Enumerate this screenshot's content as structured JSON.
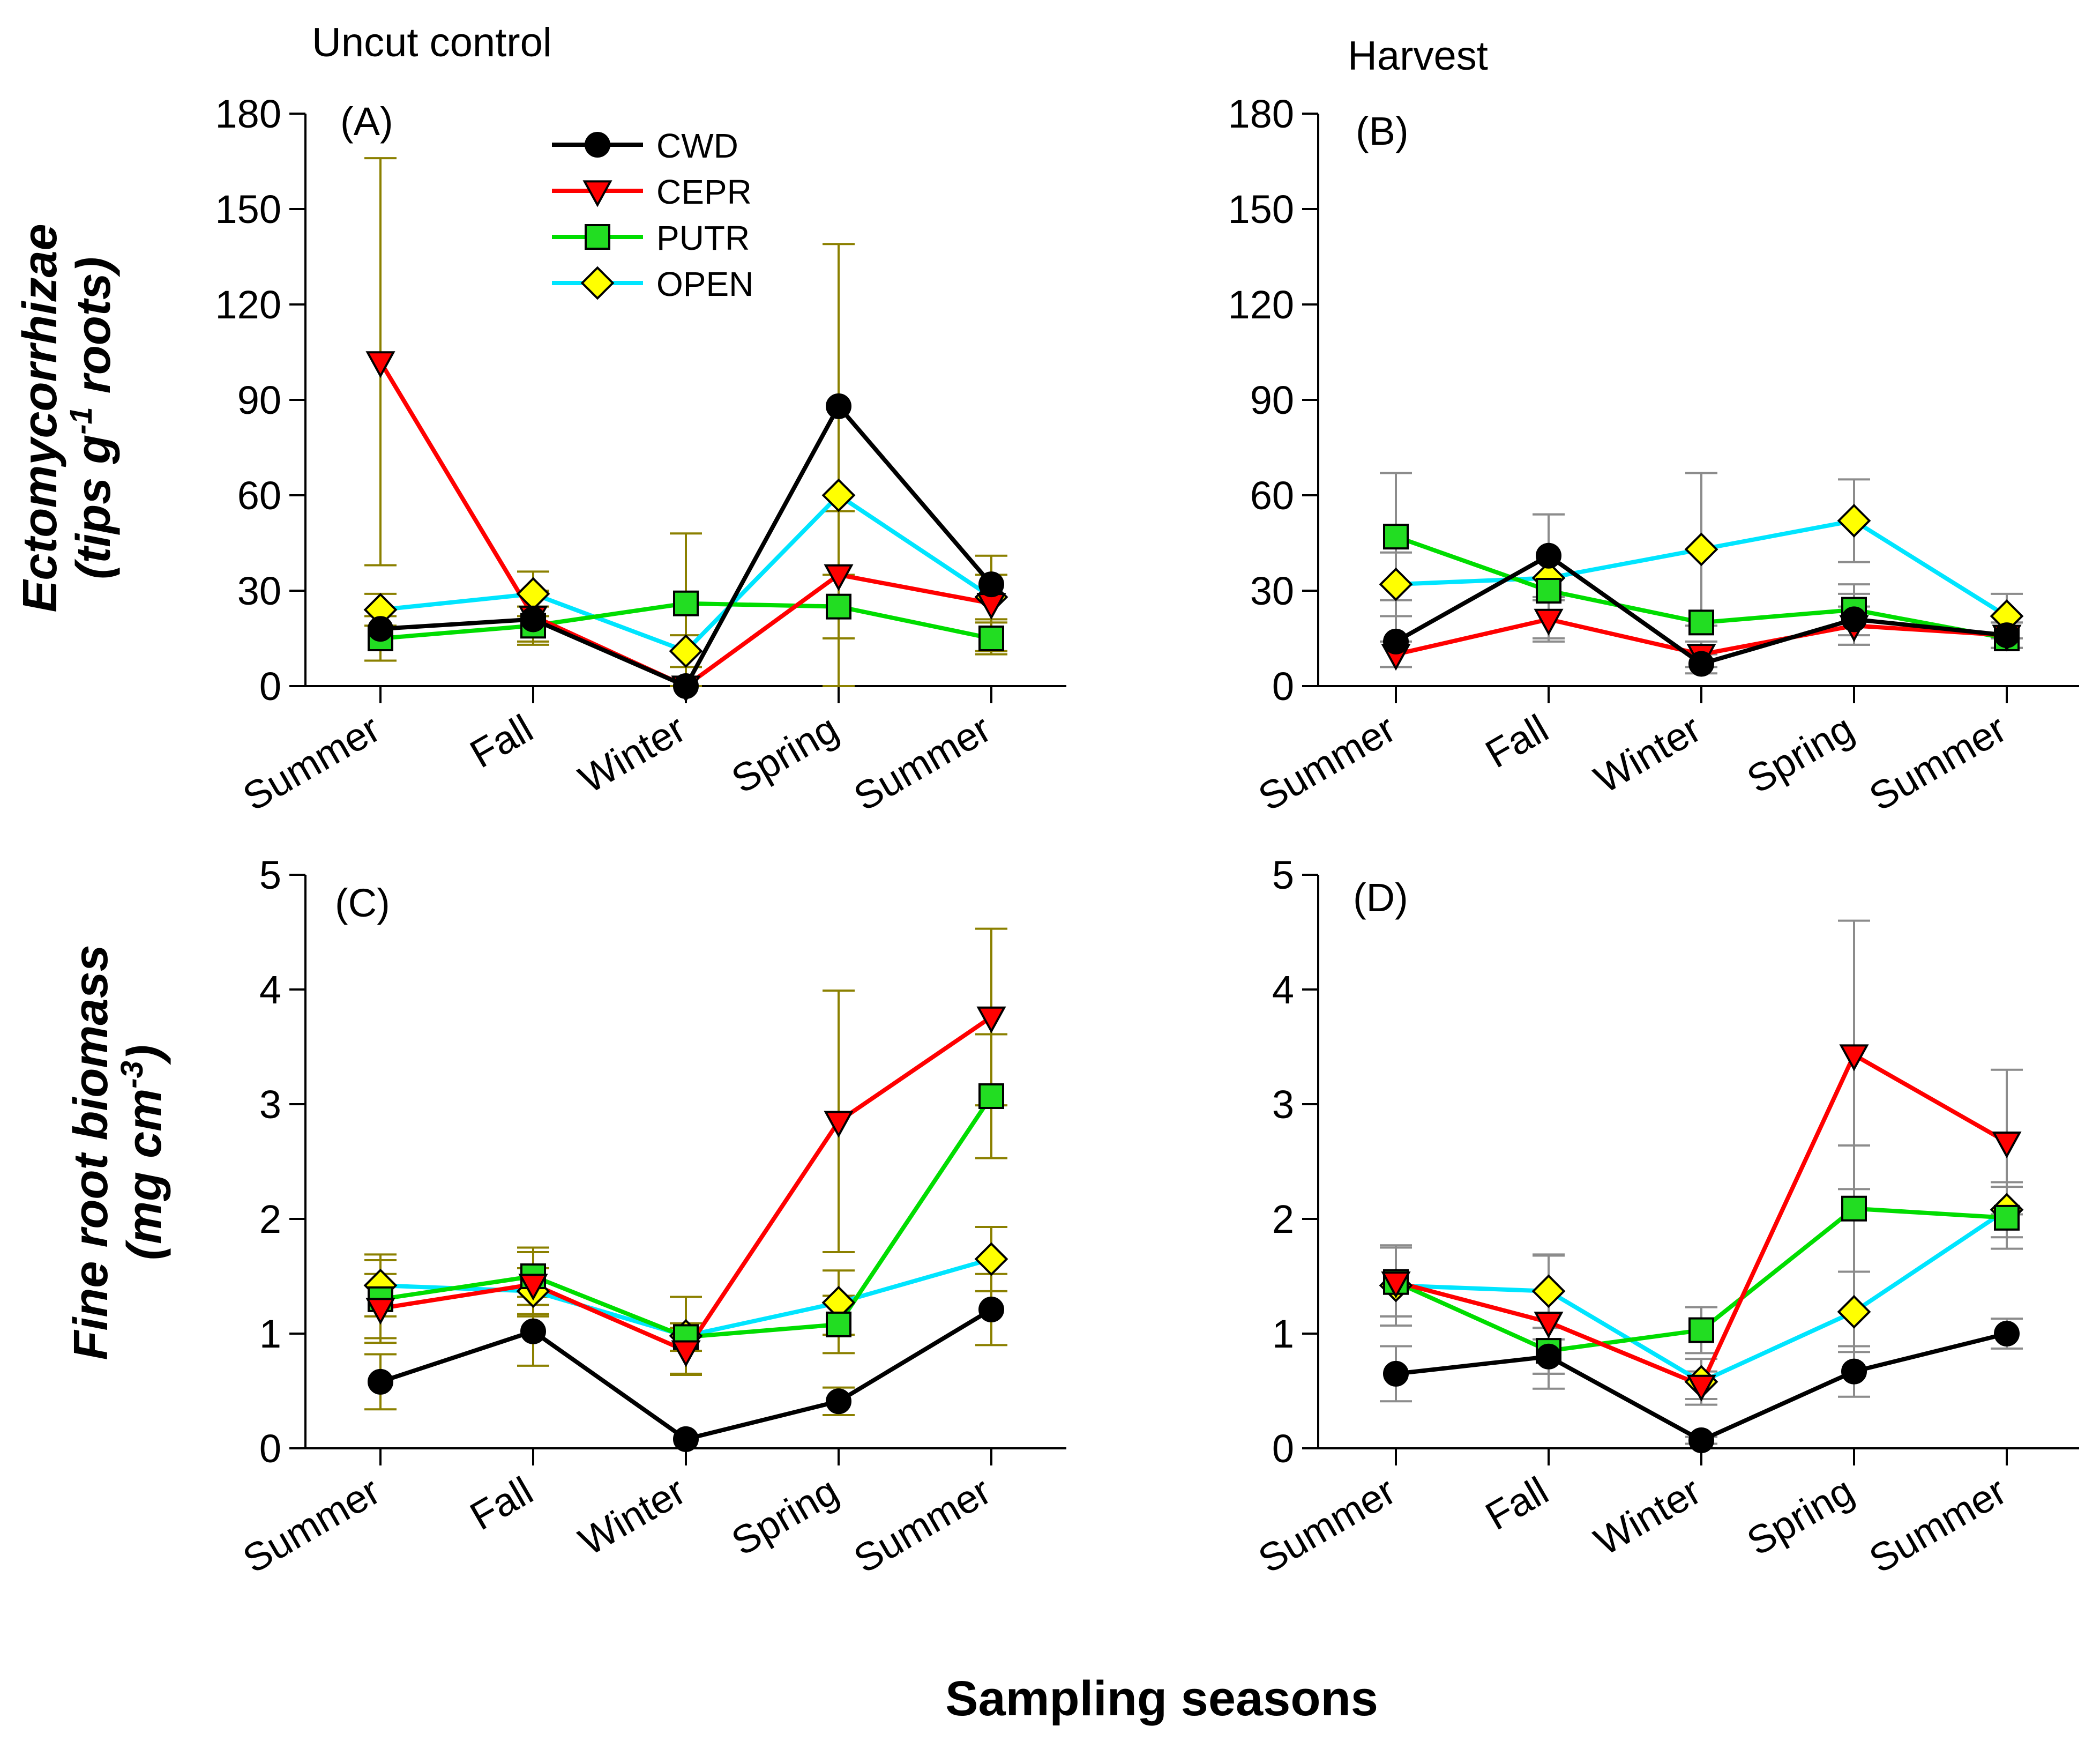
{
  "figure": {
    "xlabel": "Sampling seasons",
    "ylabel_top_line1": "Ectomycorrhizae",
    "ylabel_top_line2": "(tips g",
    "ylabel_top_sup": "-1",
    "ylabel_top_end": " roots)",
    "ylabel_bottom_line1": "Fine root biomass",
    "ylabel_bottom_line2": "(mg cm",
    "ylabel_bottom_sup": "-3",
    "ylabel_bottom_end": ")",
    "col_title_left": "Uncut control",
    "col_title_right": "Harvest",
    "legend": [
      {
        "name": "CWD",
        "color": "#000000",
        "marker": "circle"
      },
      {
        "name": "CEPR",
        "color": "#ff0000",
        "marker": "triangle-down"
      },
      {
        "name": "PUTR",
        "color": "#00dd00",
        "marker": "square"
      },
      {
        "name": "OPEN",
        "color": "#00e5ff",
        "marker": "diamond"
      }
    ],
    "colors": {
      "errorbar_left": "#8b8000",
      "errorbar_right": "#8c8c8c",
      "marker_green": "#22dd22",
      "marker_yellow": "#ffff00",
      "marker_red": "#ff0000",
      "marker_black": "#000000"
    }
  },
  "chart_data": [
    {
      "panel": "(A)",
      "type": "line",
      "categories": [
        "Summer",
        "Fall",
        "Winter",
        "Spring",
        "Summer"
      ],
      "ylim": [
        0,
        180
      ],
      "yticks": [
        0,
        30,
        60,
        90,
        120,
        150,
        180
      ],
      "series": [
        {
          "name": "CWD",
          "values": [
            18,
            21,
            0,
            88,
            32
          ],
          "err": [
            0,
            0,
            0,
            0,
            0
          ]
        },
        {
          "name": "CEPR",
          "values": [
            102,
            22,
            0,
            35,
            26
          ],
          "err": [
            64,
            8,
            48,
            20,
            15
          ]
        },
        {
          "name": "PUTR",
          "values": [
            15,
            19,
            26,
            25,
            15
          ],
          "err": [
            7,
            6,
            0,
            10,
            5
          ]
        },
        {
          "name": "OPEN",
          "values": [
            24,
            29,
            11,
            60,
            28
          ],
          "err": [
            5,
            7,
            5,
            79,
            7
          ]
        }
      ]
    },
    {
      "panel": "(B)",
      "type": "line",
      "categories": [
        "Summer",
        "Fall",
        "Winter",
        "Spring",
        "Summer"
      ],
      "ylim": [
        0,
        180
      ],
      "yticks": [
        0,
        30,
        60,
        90,
        120,
        150,
        180
      ],
      "series": [
        {
          "name": "CWD",
          "values": [
            14,
            41,
            7,
            21,
            16
          ],
          "err": [
            8,
            13,
            3,
            8,
            4
          ]
        },
        {
          "name": "CEPR",
          "values": [
            10,
            21,
            10,
            19,
            16
          ],
          "err": [
            4,
            6,
            4,
            6,
            4
          ]
        },
        {
          "name": "PUTR",
          "values": [
            47,
            30,
            20,
            24,
            15
          ],
          "err": [
            20,
            0,
            0,
            8,
            0
          ]
        },
        {
          "name": "OPEN",
          "values": [
            32,
            34,
            43,
            52,
            22
          ],
          "err": [
            10,
            20,
            24,
            13,
            7
          ]
        }
      ]
    },
    {
      "panel": "(C)",
      "type": "line",
      "categories": [
        "Summer",
        "Fall",
        "Winter",
        "Spring",
        "Summer"
      ],
      "ylim": [
        0,
        5
      ],
      "yticks": [
        0,
        1,
        2,
        3,
        4,
        5
      ],
      "series": [
        {
          "name": "CWD",
          "values": [
            0.58,
            1.02,
            0.08,
            0.41,
            1.21
          ],
          "err": [
            0.24,
            0.3,
            0,
            0.12,
            0.31
          ]
        },
        {
          "name": "CEPR",
          "values": [
            1.22,
            1.43,
            0.85,
            2.85,
            3.76
          ],
          "err": [
            0.3,
            0.28,
            0.2,
            1.14,
            0.77
          ]
        },
        {
          "name": "PUTR",
          "values": [
            1.3,
            1.5,
            0.97,
            1.08,
            3.07
          ],
          "err": [
            0.34,
            0.25,
            0.12,
            0.25,
            0.54
          ]
        },
        {
          "name": "OPEN",
          "values": [
            1.42,
            1.37,
            0.98,
            1.27,
            1.65
          ],
          "err": [
            0.27,
            0.2,
            0.34,
            0.28,
            0.28
          ]
        }
      ]
    },
    {
      "panel": "(D)",
      "type": "line",
      "categories": [
        "Summer",
        "Fall",
        "Winter",
        "Spring",
        "Summer"
      ],
      "ylim": [
        0,
        5
      ],
      "yticks": [
        0,
        1,
        2,
        3,
        4,
        5
      ],
      "series": [
        {
          "name": "CWD",
          "values": [
            0.65,
            0.8,
            0.07,
            0.67,
            1.0
          ],
          "err": [
            0.24,
            0.15,
            0.03,
            0.22,
            0.13
          ]
        },
        {
          "name": "CEPR",
          "values": [
            1.45,
            1.1,
            0.55,
            3.43,
            2.67
          ],
          "err": [
            0.3,
            0.58,
            0.12,
            1.17,
            0.63
          ]
        },
        {
          "name": "PUTR",
          "values": [
            1.45,
            0.85,
            1.03,
            2.09,
            2.01
          ],
          "err": [
            0.3,
            0.2,
            0.2,
            0.55,
            0.27
          ]
        },
        {
          "name": "OPEN",
          "values": [
            1.42,
            1.37,
            0.58,
            1.19,
            2.08
          ],
          "err": [
            0.35,
            0.32,
            0.2,
            0.35,
            0.24
          ]
        }
      ]
    }
  ]
}
